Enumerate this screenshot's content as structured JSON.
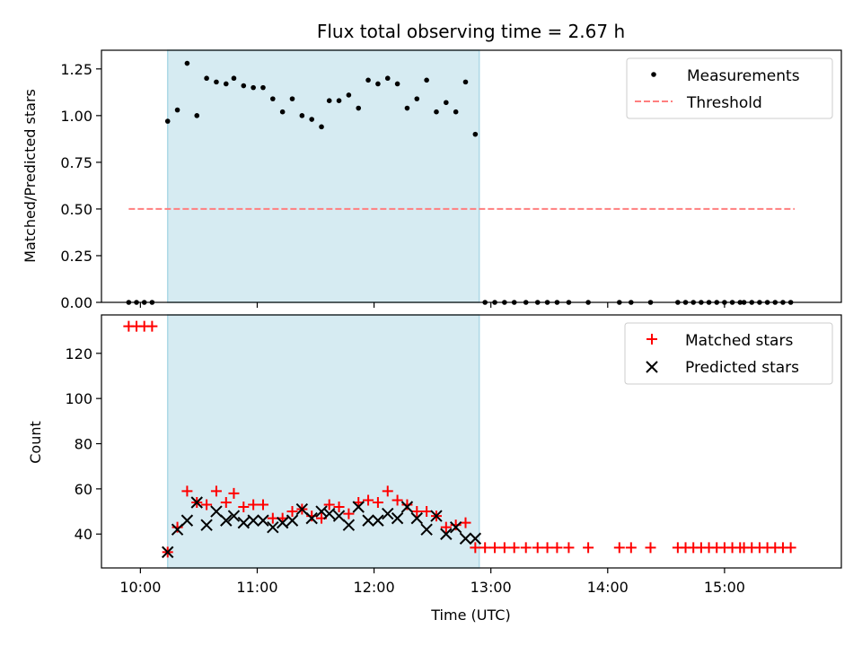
{
  "chart_data": [
    {
      "type": "scatter",
      "title": "Flux total observing time = 2.67 h",
      "ylabel": "Matched/Predicted stars",
      "xlim": [
        "09:40",
        "16:00"
      ],
      "ylim": [
        0,
        1.35
      ],
      "yticks": [
        "0.00",
        "0.25",
        "0.50",
        "0.75",
        "1.00",
        "1.25"
      ],
      "grid": false,
      "legend_position": "top-right",
      "shaded_interval": [
        "10:14",
        "12:54"
      ],
      "colors": {
        "measurements": "#000000",
        "threshold": "#ff7f7f",
        "shade": "#add8e6"
      },
      "legend": [
        "Measurements",
        "Threshold"
      ],
      "threshold": {
        "value": 0.5,
        "x": [
          "09:54",
          "15:36"
        ]
      },
      "series": [
        {
          "name": "Measurements",
          "x": [
            "09:54",
            "09:58",
            "10:02",
            "10:06",
            "10:14",
            "10:19",
            "10:24",
            "10:29",
            "10:34",
            "10:39",
            "10:44",
            "10:48",
            "10:53",
            "10:58",
            "11:03",
            "11:08",
            "11:13",
            "11:18",
            "11:23",
            "11:28",
            "11:33",
            "11:37",
            "11:42",
            "11:47",
            "11:52",
            "11:57",
            "12:02",
            "12:07",
            "12:12",
            "12:17",
            "12:22",
            "12:27",
            "12:32",
            "12:37",
            "12:42",
            "12:47",
            "12:52",
            "12:57",
            "13:02",
            "13:07",
            "13:12",
            "13:18",
            "13:24",
            "13:29",
            "13:34",
            "13:40",
            "13:50",
            "14:06",
            "14:12",
            "14:22",
            "14:36",
            "14:40",
            "14:44",
            "14:48",
            "14:52",
            "14:56",
            "15:00",
            "15:04",
            "15:08",
            "15:10",
            "15:14",
            "15:18",
            "15:22",
            "15:26",
            "15:30",
            "15:34"
          ],
          "y": [
            0,
            0,
            0,
            0,
            0.97,
            1.03,
            1.28,
            1.0,
            1.2,
            1.18,
            1.17,
            1.2,
            1.16,
            1.15,
            1.15,
            1.09,
            1.02,
            1.09,
            1.0,
            0.98,
            0.94,
            1.08,
            1.08,
            1.11,
            1.04,
            1.19,
            1.17,
            1.2,
            1.17,
            1.04,
            1.09,
            1.19,
            1.02,
            1.07,
            1.02,
            1.18,
            0.9,
            0,
            0,
            0,
            0,
            0,
            0,
            0,
            0,
            0,
            0,
            0,
            0,
            0,
            0,
            0,
            0,
            0,
            0,
            0,
            0,
            0,
            0,
            0,
            0,
            0,
            0,
            0,
            0,
            0
          ]
        }
      ]
    },
    {
      "type": "scatter",
      "xlabel": "Time (UTC)",
      "ylabel": "Count",
      "xlim": [
        "09:40",
        "16:00"
      ],
      "xticks": [
        "10:00",
        "11:00",
        "12:00",
        "13:00",
        "14:00",
        "15:00"
      ],
      "ylim": [
        25,
        137
      ],
      "yticks": [
        "40",
        "60",
        "80",
        "100",
        "120"
      ],
      "grid": false,
      "legend_position": "top-right",
      "shaded_interval": [
        "10:14",
        "12:54"
      ],
      "colors": {
        "matched": "#ff0000",
        "predicted": "#000000",
        "shade": "#add8e6"
      },
      "legend": [
        "Matched stars",
        "Predicted stars"
      ],
      "series": [
        {
          "name": "Matched stars",
          "x": [
            "09:54",
            "09:58",
            "10:02",
            "10:06",
            "10:14",
            "10:19",
            "10:24",
            "10:29",
            "10:34",
            "10:39",
            "10:44",
            "10:48",
            "10:53",
            "10:58",
            "11:03",
            "11:08",
            "11:13",
            "11:18",
            "11:23",
            "11:28",
            "11:33",
            "11:37",
            "11:42",
            "11:47",
            "11:52",
            "11:57",
            "12:02",
            "12:07",
            "12:12",
            "12:17",
            "12:22",
            "12:27",
            "12:32",
            "12:37",
            "12:42",
            "12:47",
            "12:52",
            "12:57",
            "13:02",
            "13:07",
            "13:12",
            "13:18",
            "13:24",
            "13:29",
            "13:34",
            "13:40",
            "13:50",
            "14:06",
            "14:12",
            "14:22",
            "14:36",
            "14:40",
            "14:44",
            "14:48",
            "14:52",
            "14:56",
            "15:00",
            "15:04",
            "15:08",
            "15:10",
            "15:14",
            "15:18",
            "15:22",
            "15:26",
            "15:30",
            "15:34"
          ],
          "y": [
            132,
            132,
            132,
            132,
            32,
            43,
            59,
            54,
            53,
            59,
            54,
            58,
            52,
            53,
            53,
            47,
            47,
            50,
            51,
            48,
            47,
            53,
            52,
            49,
            54,
            55,
            54,
            59,
            55,
            53,
            50,
            50,
            48,
            43,
            44,
            45,
            34,
            34,
            34,
            34,
            34,
            34,
            34,
            34,
            34,
            34,
            34,
            34,
            34,
            34,
            34,
            34,
            34,
            34,
            34,
            34,
            34,
            34,
            34,
            34,
            34,
            34,
            34,
            34,
            34,
            34
          ]
        },
        {
          "name": "Predicted stars",
          "x": [
            "10:14",
            "10:19",
            "10:24",
            "10:29",
            "10:34",
            "10:39",
            "10:44",
            "10:48",
            "10:53",
            "10:58",
            "11:03",
            "11:08",
            "11:13",
            "11:18",
            "11:23",
            "11:28",
            "11:33",
            "11:37",
            "11:42",
            "11:47",
            "11:52",
            "11:57",
            "12:02",
            "12:07",
            "12:12",
            "12:17",
            "12:22",
            "12:27",
            "12:32",
            "12:37",
            "12:42",
            "12:47",
            "12:52"
          ],
          "y": [
            32,
            42,
            46,
            54,
            44,
            50,
            46,
            48,
            45,
            46,
            46,
            43,
            45,
            46,
            51,
            47,
            50,
            49,
            48,
            44,
            52,
            46,
            46,
            49,
            47,
            52,
            47,
            42,
            48,
            40,
            43,
            38,
            38
          ]
        }
      ]
    }
  ]
}
